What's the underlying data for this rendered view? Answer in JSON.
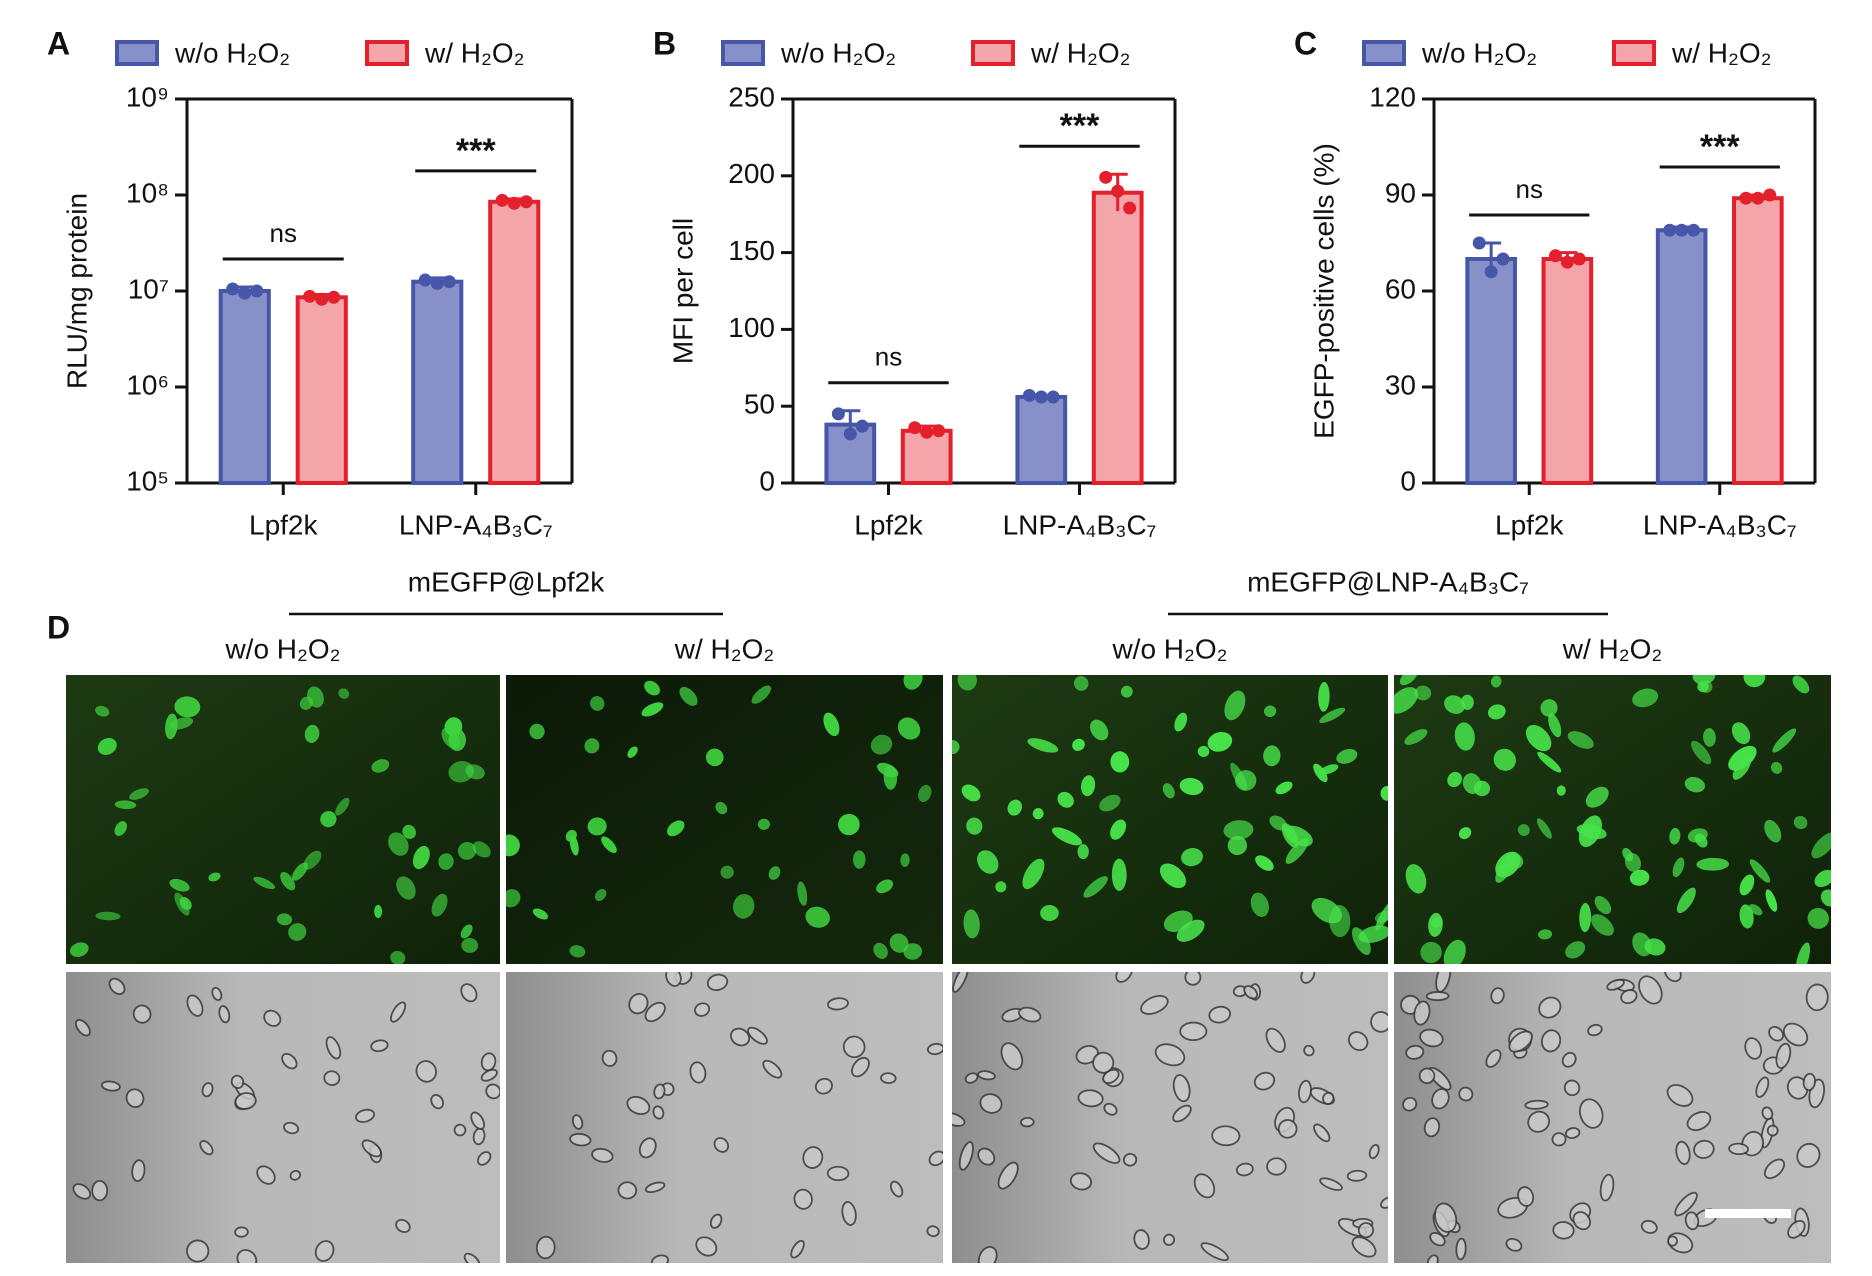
{
  "chart_data": [
    {
      "type": "bar",
      "label": "A",
      "ylabel": "RLU/mg protein",
      "yscale": "log",
      "categories": [
        "Lpf2k",
        "LNP-A₄B₃C₇"
      ],
      "series": [
        {
          "name": "w/o H₂O₂",
          "color": "#8790c8",
          "edgecolor": "#4656a8",
          "values": [
            10000000,
            12500000
          ],
          "errors": [
            1000000,
            1200000
          ],
          "points": [
            [
              10500000,
              9500000,
              10000000
            ],
            [
              13000000,
              12000000,
              12500000
            ]
          ]
        },
        {
          "name": "w/ H₂O₂",
          "color": "#f3a5aa",
          "edgecolor": "#e3202c",
          "values": [
            8600000,
            85000000
          ],
          "errors": [
            600000,
            6000000
          ],
          "points": [
            [
              8800000,
              8200000,
              8600000
            ],
            [
              88000000,
              82000000,
              85000000
            ]
          ]
        }
      ],
      "ylim": [
        100000,
        1000000000
      ],
      "yticks": [
        {
          "value": 100000,
          "label": "10⁵"
        },
        {
          "value": 1000000,
          "label": "10⁶"
        },
        {
          "value": 10000000,
          "label": "10⁷"
        },
        {
          "value": 100000000,
          "label": "10⁸"
        },
        {
          "value": 1000000000,
          "label": "10⁹"
        }
      ],
      "annotations": [
        "ns",
        "***"
      ]
    },
    {
      "type": "bar",
      "label": "B",
      "ylabel": "MFI per cell",
      "yscale": "linear",
      "categories": [
        "Lpf2k",
        "LNP-A₄B₃C₇"
      ],
      "series": [
        {
          "name": "w/o H₂O₂",
          "color": "#8790c8",
          "edgecolor": "#4656a8",
          "values": [
            38,
            56
          ],
          "errors": [
            9,
            1
          ],
          "points": [
            [
              45,
              32,
              37
            ],
            [
              57,
              56,
              56
            ]
          ]
        },
        {
          "name": "w/ H₂O₂",
          "color": "#f3a5aa",
          "edgecolor": "#e3202c",
          "values": [
            34,
            189
          ],
          "errors": [
            3,
            12
          ],
          "points": [
            [
              36,
              33,
              34
            ],
            [
              199,
              190,
              179
            ]
          ]
        }
      ],
      "ylim": [
        0,
        250
      ],
      "yticks": [
        0,
        50,
        100,
        150,
        200,
        250
      ],
      "annotations": [
        "ns",
        "***"
      ]
    },
    {
      "type": "bar",
      "label": "C",
      "ylabel": "EGFP-positive cells (%)",
      "yscale": "linear",
      "categories": [
        "Lpf2k",
        "LNP-A₄B₃C₇"
      ],
      "series": [
        {
          "name": "w/o H₂O₂",
          "color": "#8790c8",
          "edgecolor": "#4656a8",
          "values": [
            70,
            79
          ],
          "errors": [
            5,
            1
          ],
          "points": [
            [
              75,
              66,
              70
            ],
            [
              79,
              79,
              79
            ]
          ]
        },
        {
          "name": "w/ H₂O₂",
          "color": "#f3a5aa",
          "edgecolor": "#e3202c",
          "values": [
            70,
            89
          ],
          "errors": [
            2,
            1
          ],
          "points": [
            [
              71,
              69,
              70
            ],
            [
              89,
              89,
              90
            ]
          ]
        }
      ],
      "ylim": [
        0,
        120
      ],
      "yticks": [
        0,
        30,
        60,
        90,
        120
      ],
      "annotations": [
        "ns",
        "***"
      ]
    }
  ],
  "panel_d": {
    "label": "D",
    "groups": [
      {
        "title": "mEGFP@Lpf2k",
        "columns": [
          "w/o H₂O₂",
          "w/ H₂O₂"
        ]
      },
      {
        "title": "mEGFP@LNP-A₄B₃C₇",
        "columns": [
          "w/o H₂O₂",
          "w/ H₂O₂"
        ]
      }
    ]
  }
}
